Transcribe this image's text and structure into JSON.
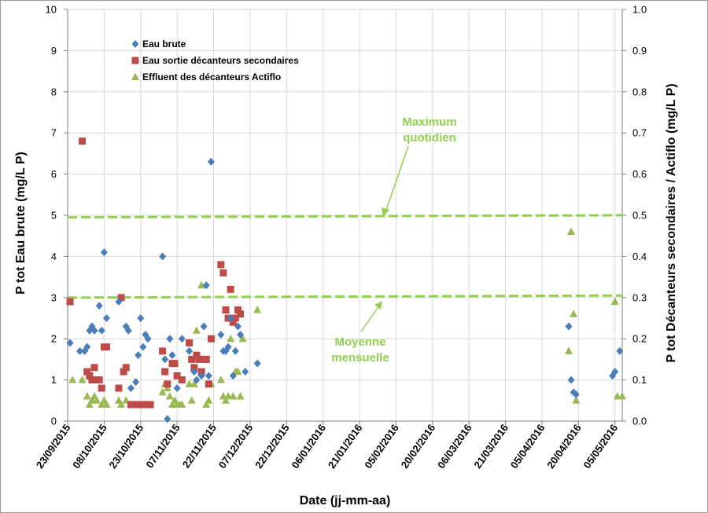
{
  "chart_data": {
    "type": "scatter",
    "xlabel": "Date (jj-mm-aa)",
    "ylabel_left": "P tot Eau brute (mg/L P)",
    "ylabel_right": "P tot Décanteurs secondaires / Actiflo (mg/L P)",
    "ylim_left": [
      0,
      10
    ],
    "ylim_right": [
      0,
      1.0
    ],
    "yticks_left": [
      "0",
      "1",
      "2",
      "3",
      "4",
      "5",
      "6",
      "7",
      "8",
      "9",
      "10"
    ],
    "yticks_right": [
      "0.0",
      "0.1",
      "0.2",
      "0.3",
      "0.4",
      "0.5",
      "0.6",
      "0.7",
      "0.8",
      "0.9",
      "1.0"
    ],
    "xlim": [
      "2015-09-23",
      "2016-05-08"
    ],
    "x_tick_labels": [
      "23/09/2015",
      "08/10/2015",
      "23/10/2015",
      "07/11/2015",
      "22/11/2015",
      "07/12/2015",
      "22/12/2015",
      "06/01/2016",
      "21/01/2016",
      "05/02/2016",
      "20/02/2016",
      "06/03/2016",
      "21/03/2016",
      "05/04/2016",
      "20/04/2016",
      "05/05/2016"
    ],
    "grid": true,
    "legend_position": "top-left",
    "series": [
      {
        "name": "Eau brute",
        "axis": "left",
        "marker": "diamond",
        "color": "#4a7ebb",
        "points": [
          [
            "2015-09-24",
            1.9
          ],
          [
            "2015-09-28",
            1.7
          ],
          [
            "2015-09-30",
            1.7
          ],
          [
            "2015-10-01",
            1.8
          ],
          [
            "2015-10-02",
            2.2
          ],
          [
            "2015-10-03",
            2.3
          ],
          [
            "2015-10-04",
            2.2
          ],
          [
            "2015-10-06",
            2.8
          ],
          [
            "2015-10-07",
            2.2
          ],
          [
            "2015-10-08",
            4.1
          ],
          [
            "2015-10-09",
            2.5
          ],
          [
            "2015-10-14",
            2.9
          ],
          [
            "2015-10-17",
            2.3
          ],
          [
            "2015-10-18",
            2.2
          ],
          [
            "2015-10-19",
            0.8
          ],
          [
            "2015-10-21",
            0.95
          ],
          [
            "2015-10-22",
            1.6
          ],
          [
            "2015-10-23",
            2.5
          ],
          [
            "2015-10-24",
            1.8
          ],
          [
            "2015-10-25",
            2.1
          ],
          [
            "2015-10-26",
            2.0
          ],
          [
            "2015-11-01",
            4.0
          ],
          [
            "2015-11-02",
            1.5
          ],
          [
            "2015-11-03",
            0.05
          ],
          [
            "2015-11-04",
            2.0
          ],
          [
            "2015-11-05",
            1.6
          ],
          [
            "2015-11-07",
            0.8
          ],
          [
            "2015-11-09",
            2.0
          ],
          [
            "2015-11-12",
            1.7
          ],
          [
            "2015-11-14",
            1.2
          ],
          [
            "2015-11-15",
            1.0
          ],
          [
            "2015-11-17",
            1.1
          ],
          [
            "2015-11-18",
            2.3
          ],
          [
            "2015-11-19",
            3.3
          ],
          [
            "2015-11-20",
            1.1
          ],
          [
            "2015-11-21",
            6.3
          ],
          [
            "2015-11-25",
            2.1
          ],
          [
            "2015-11-26",
            1.7
          ],
          [
            "2015-11-27",
            1.7
          ],
          [
            "2015-11-28",
            1.8
          ],
          [
            "2015-11-29",
            2.5
          ],
          [
            "2015-11-30",
            1.1
          ],
          [
            "2015-12-01",
            1.7
          ],
          [
            "2015-12-02",
            2.3
          ],
          [
            "2015-12-03",
            2.1
          ],
          [
            "2015-12-05",
            1.2
          ],
          [
            "2015-12-10",
            1.4
          ],
          [
            "2016-04-16",
            2.3
          ],
          [
            "2016-04-17",
            1.0
          ],
          [
            "2016-04-18",
            0.7
          ],
          [
            "2016-04-19",
            0.65
          ],
          [
            "2016-05-04",
            1.1
          ],
          [
            "2016-05-05",
            1.2
          ],
          [
            "2016-05-07",
            1.7
          ]
        ]
      },
      {
        "name": "Eau sortie décanteurs secondaires",
        "axis": "right",
        "marker": "square",
        "color": "#be4b48",
        "points": [
          [
            "2015-09-24",
            0.29
          ],
          [
            "2015-09-29",
            0.68
          ],
          [
            "2015-10-01",
            0.12
          ],
          [
            "2015-10-02",
            0.11
          ],
          [
            "2015-10-03",
            0.1
          ],
          [
            "2015-10-04",
            0.13
          ],
          [
            "2015-10-05",
            0.1
          ],
          [
            "2015-10-06",
            0.1
          ],
          [
            "2015-10-07",
            0.08
          ],
          [
            "2015-10-08",
            0.18
          ],
          [
            "2015-10-09",
            0.18
          ],
          [
            "2015-10-14",
            0.08
          ],
          [
            "2015-10-15",
            0.3
          ],
          [
            "2015-10-16",
            0.12
          ],
          [
            "2015-10-17",
            0.13
          ],
          [
            "2015-10-19",
            0.04
          ],
          [
            "2015-10-20",
            0.04
          ],
          [
            "2015-10-21",
            0.04
          ],
          [
            "2015-10-22",
            0.04
          ],
          [
            "2015-10-23",
            0.04
          ],
          [
            "2015-10-24",
            0.04
          ],
          [
            "2015-10-25",
            0.04
          ],
          [
            "2015-10-26",
            0.04
          ],
          [
            "2015-10-27",
            0.04
          ],
          [
            "2015-11-01",
            0.17
          ],
          [
            "2015-11-02",
            0.12
          ],
          [
            "2015-11-03",
            0.09
          ],
          [
            "2015-11-05",
            0.14
          ],
          [
            "2015-11-06",
            0.14
          ],
          [
            "2015-11-07",
            0.11
          ],
          [
            "2015-11-09",
            0.1
          ],
          [
            "2015-11-12",
            0.19
          ],
          [
            "2015-11-13",
            0.15
          ],
          [
            "2015-11-14",
            0.13
          ],
          [
            "2015-11-15",
            0.16
          ],
          [
            "2015-11-16",
            0.15
          ],
          [
            "2015-11-17",
            0.12
          ],
          [
            "2015-11-18",
            0.15
          ],
          [
            "2015-11-19",
            0.15
          ],
          [
            "2015-11-20",
            0.09
          ],
          [
            "2015-11-21",
            0.2
          ],
          [
            "2015-11-25",
            0.38
          ],
          [
            "2015-11-26",
            0.36
          ],
          [
            "2015-11-27",
            0.27
          ],
          [
            "2015-11-28",
            0.25
          ],
          [
            "2015-11-29",
            0.32
          ],
          [
            "2015-11-30",
            0.24
          ],
          [
            "2015-12-01",
            0.25
          ],
          [
            "2015-12-02",
            0.27
          ],
          [
            "2015-12-03",
            0.26
          ]
        ]
      },
      {
        "name": "Effluent des décanteurs Actiflo",
        "axis": "right",
        "marker": "triangle",
        "color": "#98b954",
        "points": [
          [
            "2015-09-25",
            0.1
          ],
          [
            "2015-09-29",
            0.1
          ],
          [
            "2015-10-01",
            0.06
          ],
          [
            "2015-10-02",
            0.04
          ],
          [
            "2015-10-03",
            0.05
          ],
          [
            "2015-10-04",
            0.06
          ],
          [
            "2015-10-05",
            0.05
          ],
          [
            "2015-10-07",
            0.04
          ],
          [
            "2015-10-08",
            0.05
          ],
          [
            "2015-10-09",
            0.04
          ],
          [
            "2015-10-14",
            0.05
          ],
          [
            "2015-10-15",
            0.04
          ],
          [
            "2015-10-17",
            0.05
          ],
          [
            "2015-10-19",
            0.04
          ],
          [
            "2015-10-21",
            0.04
          ],
          [
            "2015-10-23",
            0.04
          ],
          [
            "2015-10-25",
            0.04
          ],
          [
            "2015-11-01",
            0.07
          ],
          [
            "2015-11-02",
            0.09
          ],
          [
            "2015-11-03",
            0.08
          ],
          [
            "2015-11-04",
            0.06
          ],
          [
            "2015-11-05",
            0.04
          ],
          [
            "2015-11-06",
            0.05
          ],
          [
            "2015-11-07",
            0.04
          ],
          [
            "2015-11-08",
            0.04
          ],
          [
            "2015-11-09",
            0.04
          ],
          [
            "2015-11-12",
            0.09
          ],
          [
            "2015-11-13",
            0.05
          ],
          [
            "2015-11-14",
            0.09
          ],
          [
            "2015-11-15",
            0.22
          ],
          [
            "2015-11-17",
            0.33
          ],
          [
            "2015-11-19",
            0.04
          ],
          [
            "2015-11-20",
            0.05
          ],
          [
            "2015-11-21",
            0.09
          ],
          [
            "2015-11-25",
            0.1
          ],
          [
            "2015-11-26",
            0.06
          ],
          [
            "2015-11-27",
            0.05
          ],
          [
            "2015-11-28",
            0.06
          ],
          [
            "2015-11-29",
            0.2
          ],
          [
            "2015-11-30",
            0.06
          ],
          [
            "2015-12-01",
            0.12
          ],
          [
            "2015-12-02",
            0.12
          ],
          [
            "2015-12-03",
            0.06
          ],
          [
            "2015-12-04",
            0.2
          ],
          [
            "2015-12-10",
            0.27
          ],
          [
            "2016-04-16",
            0.17
          ],
          [
            "2016-04-17",
            0.46
          ],
          [
            "2016-04-18",
            0.26
          ],
          [
            "2016-04-19",
            0.05
          ],
          [
            "2016-05-05",
            0.29
          ],
          [
            "2016-05-06",
            0.06
          ],
          [
            "2016-05-08",
            0.06
          ]
        ]
      }
    ],
    "reference_lines": [
      {
        "label": "Maximum quotidien",
        "axis": "right",
        "y_start": 0.495,
        "y_end": 0.5,
        "style": "dashed",
        "color": "#92d050"
      },
      {
        "label": "Moyenne mensuelle",
        "axis": "right",
        "y_start": 0.3,
        "y_end": 0.305,
        "style": "dashed",
        "color": "#92d050"
      }
    ],
    "annotations": [
      {
        "lines": [
          "Maximum",
          "quotidien"
        ],
        "points_to": "Maximum quotidien",
        "color": "#92d050"
      },
      {
        "lines": [
          "Moyenne",
          "mensuelle"
        ],
        "points_to": "Moyenne mensuelle",
        "color": "#92d050"
      }
    ]
  }
}
